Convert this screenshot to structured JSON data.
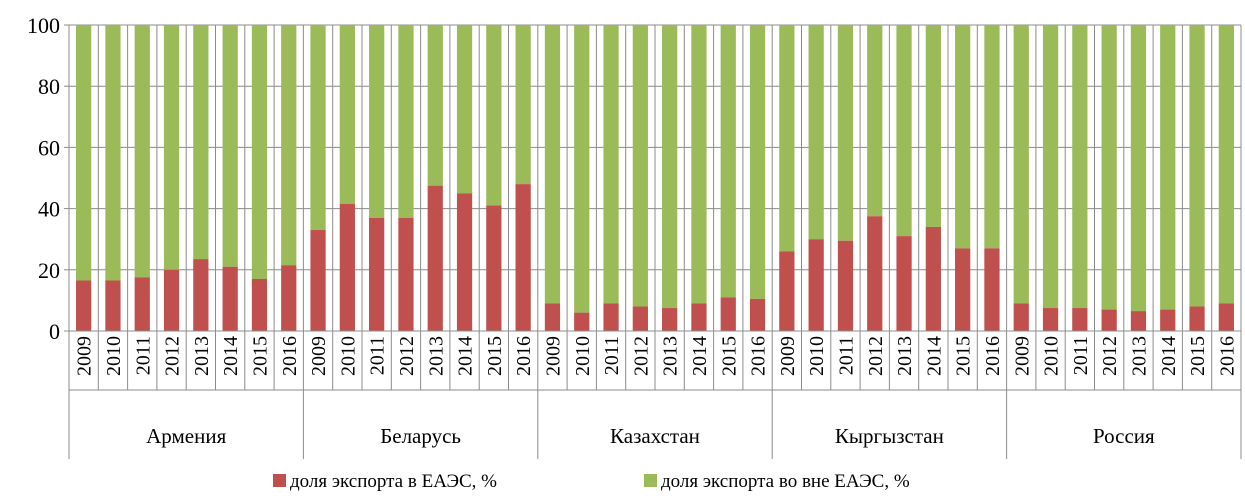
{
  "chart_data": {
    "type": "bar",
    "stacked": true,
    "ylim": [
      0,
      100
    ],
    "yticks": [
      0,
      20,
      40,
      60,
      80,
      100
    ],
    "grid": true,
    "legend_position": "bottom",
    "groups": [
      {
        "name": "Армения",
        "years": [
          "2009",
          "2010",
          "2011",
          "2012",
          "2013",
          "2014",
          "2015",
          "2016"
        ],
        "eaeu": [
          16.5,
          16.5,
          17.5,
          20,
          23.5,
          21,
          17,
          21.5
        ]
      },
      {
        "name": "Беларусь",
        "years": [
          "2009",
          "2010",
          "2011",
          "2012",
          "2013",
          "2014",
          "2015",
          "2016"
        ],
        "eaeu": [
          33,
          41.5,
          37,
          37,
          47.5,
          45,
          41,
          48
        ]
      },
      {
        "name": "Казахстан",
        "years": [
          "2009",
          "2010",
          "2011",
          "2012",
          "2013",
          "2014",
          "2015",
          "2016"
        ],
        "eaeu": [
          9,
          6,
          9,
          8,
          7.5,
          9,
          11,
          10.5
        ]
      },
      {
        "name": "Кыргызстан",
        "years": [
          "2009",
          "2010",
          "2011",
          "2012",
          "2013",
          "2014",
          "2015",
          "2016"
        ],
        "eaeu": [
          26,
          30,
          29.5,
          37.5,
          31,
          34,
          27,
          27
        ]
      },
      {
        "name": "Россия",
        "years": [
          "2009",
          "2010",
          "2011",
          "2012",
          "2013",
          "2014",
          "2015",
          "2016"
        ],
        "eaeu": [
          9,
          7.5,
          7.5,
          7,
          6.5,
          7,
          8,
          9
        ]
      }
    ],
    "series": [
      {
        "name": "доля экспорта в ЕАЭС, %",
        "color": "#c0504d"
      },
      {
        "name": "доля экспорта во вне ЕАЭС, %",
        "color": "#9bbb59"
      }
    ]
  }
}
